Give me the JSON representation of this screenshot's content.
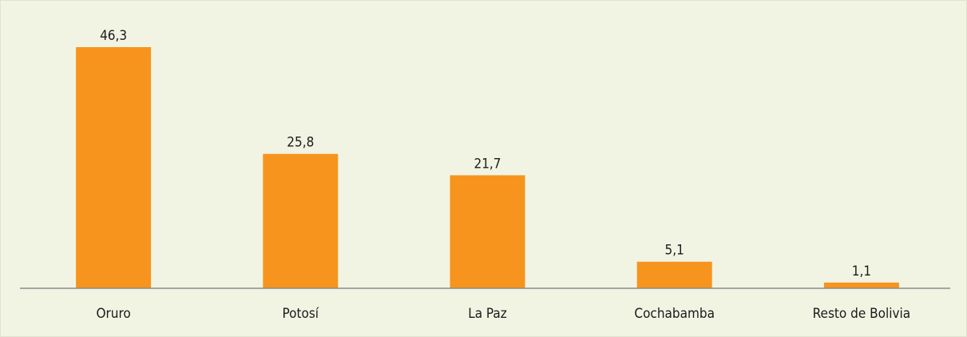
{
  "chart_data": {
    "type": "bar",
    "categories": [
      "Oruro",
      "Potosí",
      "La Paz",
      "Cochabamba",
      "Resto de Bolivia"
    ],
    "values": [
      46.3,
      25.8,
      21.7,
      5.1,
      1.1
    ],
    "value_labels": [
      "46,3",
      "25,8",
      "21,7",
      "5,1",
      "1,1"
    ],
    "color": "#f7941d"
  }
}
